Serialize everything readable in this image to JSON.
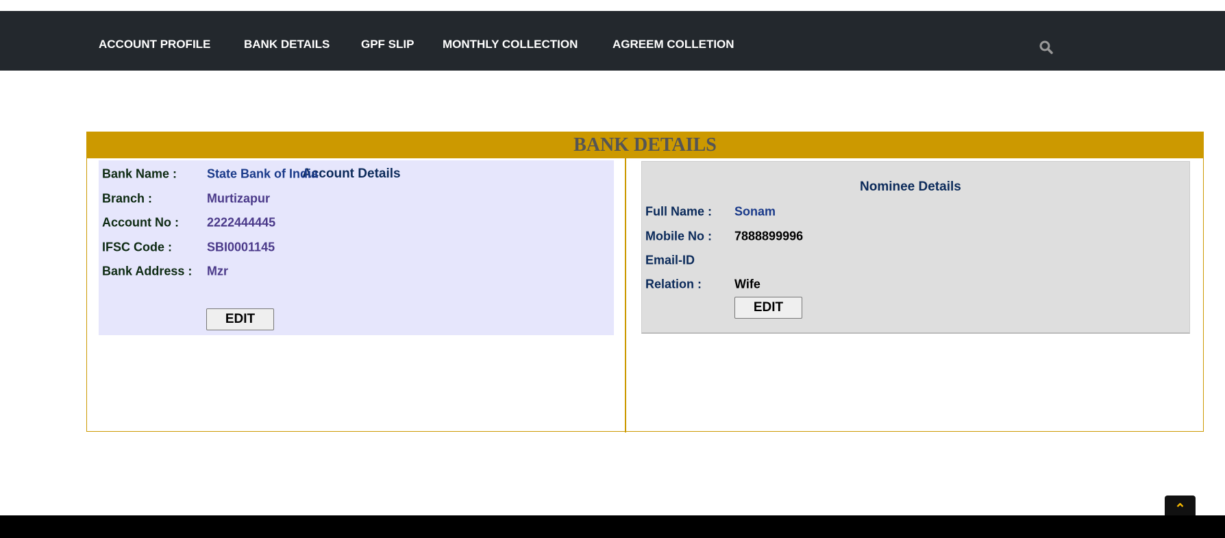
{
  "nav": {
    "items": [
      "ACCOUNT PROFILE",
      "BANK DETAILS",
      "GPF SLIP",
      "MONTHLY COLLECTION",
      "AGREEM COLLETION"
    ],
    "search_icon": "search-icon"
  },
  "title": "BANK DETAILS",
  "account": {
    "heading": "Account Details",
    "rows": [
      {
        "label": "Bank Name :",
        "value": "State Bank of India"
      },
      {
        "label": "Branch :",
        "value": "Murtizapur"
      },
      {
        "label": "Account No :",
        "value": "2222444445"
      },
      {
        "label": "IFSC Code :",
        "value": "SBI0001145"
      },
      {
        "label": "Bank Address :",
        "value": "Mzr"
      }
    ],
    "edit_label": "EDIT"
  },
  "nominee": {
    "heading": "Nominee Details",
    "rows": [
      {
        "label": "Full Name :",
        "value": "Sonam"
      },
      {
        "label": "Mobile No :",
        "value": "7888899996"
      },
      {
        "label": "Email-ID",
        "value": ""
      },
      {
        "label": "Relation :",
        "value": "Wife"
      }
    ],
    "edit_label": "EDIT"
  },
  "scroll_top_icon": "double-chevron-up-icon",
  "colors": {
    "nav_bg": "#23282d",
    "accent": "#cc9900",
    "account_bg": "#e6e6fc",
    "nominee_bg": "#dedede"
  }
}
